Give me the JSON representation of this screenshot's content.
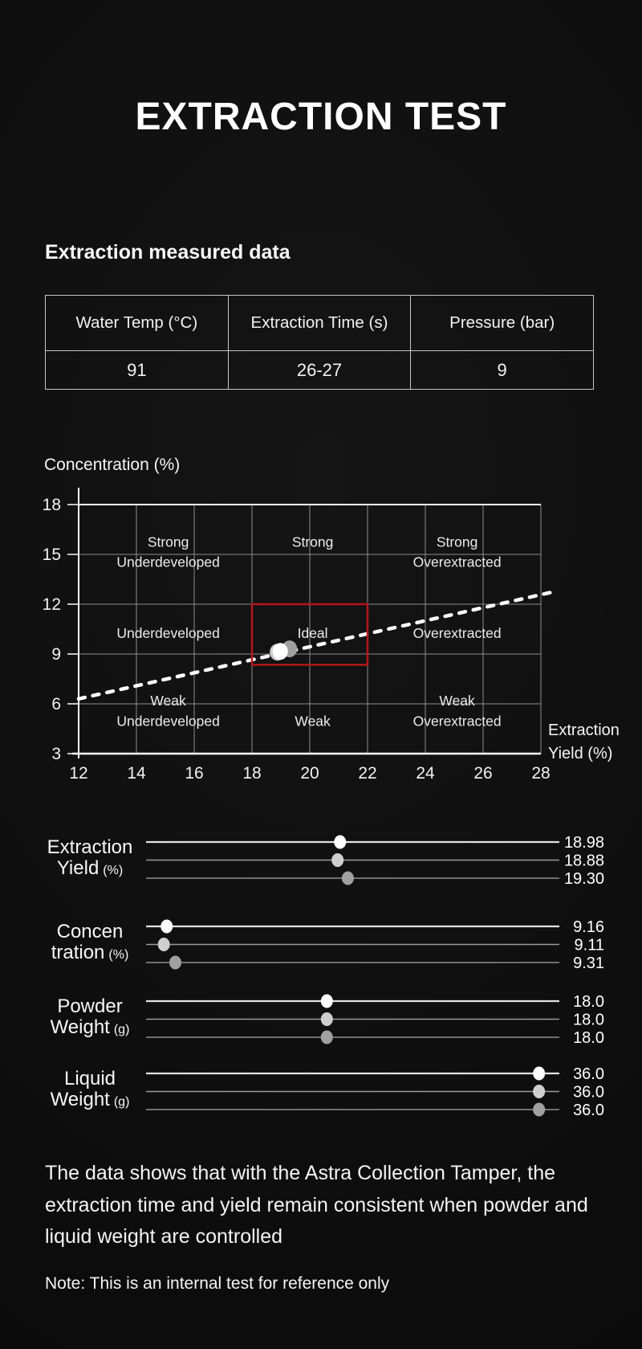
{
  "page": {
    "title": "EXTRACTION TEST",
    "section_heading": "Extraction measured data",
    "paragraph": "The data shows that with the Astra Collection Tamper, the extraction time and yield remain consistent when powder and liquid weight are controlled",
    "note": "Note: This is an internal test for reference only"
  },
  "measured_table": {
    "columns": [
      "Water Temp (°C)",
      "Extraction Time (s)",
      "Pressure (bar)"
    ],
    "rows": [
      [
        "91",
        "26-27",
        "9"
      ]
    ]
  },
  "colors": {
    "background": "#0d0d0d",
    "white_line": "#ffffff",
    "grid": "#8c8c8c",
    "ideal_box_red": "#b5161b",
    "zone_label": "#ececec",
    "row_dot_colors": [
      "#ffffff",
      "#cfcfcf",
      "#a0a0a0"
    ],
    "row_line_colors": [
      "#e2e2e2",
      "#9a9a9a",
      "#8f8f8f"
    ]
  },
  "chart_data": [
    {
      "type": "scatter",
      "title": "",
      "ylabel": "Concentration (%)",
      "xlabel": "Extraction Yield (%)",
      "xlim": [
        12,
        28
      ],
      "ylim": [
        3,
        18
      ],
      "xticks": [
        12,
        14,
        16,
        18,
        20,
        22,
        24,
        26,
        28
      ],
      "yticks": [
        3,
        6,
        9,
        12,
        15,
        18
      ],
      "grid": true,
      "zones": [
        {
          "text": "Strong",
          "x": 15.1,
          "y": 15.75
        },
        {
          "text": "Underdeveloped",
          "x": 15.1,
          "y": 14.55
        },
        {
          "text": "Strong",
          "x": 20.1,
          "y": 15.75
        },
        {
          "text": "Strong",
          "x": 25.1,
          "y": 15.75
        },
        {
          "text": "Overextracted",
          "x": 25.1,
          "y": 14.55
        },
        {
          "text": "Underdeveloped",
          "x": 15.1,
          "y": 10.25
        },
        {
          "text": "Ideal",
          "x": 20.1,
          "y": 10.25
        },
        {
          "text": "Overextracted",
          "x": 25.1,
          "y": 10.25
        },
        {
          "text": "Weak",
          "x": 15.1,
          "y": 6.2
        },
        {
          "text": "Underdeveloped",
          "x": 15.1,
          "y": 4.95
        },
        {
          "text": "Weak",
          "x": 20.1,
          "y": 4.95
        },
        {
          "text": "Weak",
          "x": 25.1,
          "y": 6.2
        },
        {
          "text": "Overextracted",
          "x": 25.1,
          "y": 4.95
        }
      ],
      "ideal_box": {
        "x": [
          18,
          22
        ],
        "y": [
          8.35,
          12
        ]
      },
      "trend_line": {
        "style": "dashed",
        "x1": 12,
        "y1": 6.3,
        "x2": 28.45,
        "y2": 12.75
      },
      "points": [
        {
          "x": 18.98,
          "y": 9.16
        },
        {
          "x": 18.88,
          "y": 9.11
        },
        {
          "x": 19.3,
          "y": 9.31
        }
      ]
    },
    {
      "type": "dot-rows",
      "line_span_note": "each group shows 3 test runs",
      "groups": [
        {
          "label_lines": [
            [
              "Extraction"
            ],
            [
              "Yield",
              "(%)"
            ]
          ],
          "values": [
            "18.98",
            "18.88",
            "19.30"
          ],
          "axis_range": [
            11,
            28
          ]
        },
        {
          "label_lines": [
            [
              "Concen"
            ],
            [
              "tration",
              "(%)"
            ]
          ],
          "values": [
            "9.16",
            "9.11",
            "9.31"
          ],
          "axis_range": [
            8.8,
            16
          ]
        },
        {
          "label_lines": [
            [
              "Powder"
            ],
            [
              "Weight",
              "(g)"
            ]
          ],
          "values": [
            "18.0",
            "18.0",
            "18.0"
          ],
          "axis_range": [
            14.5,
            22.5
          ]
        },
        {
          "label_lines": [
            [
              "Liquid"
            ],
            [
              "Weight",
              "(g)"
            ]
          ],
          "values": [
            "36.0",
            "36.0",
            "36.0"
          ],
          "axis_range": [
            30.2,
            36.3
          ]
        }
      ]
    }
  ]
}
